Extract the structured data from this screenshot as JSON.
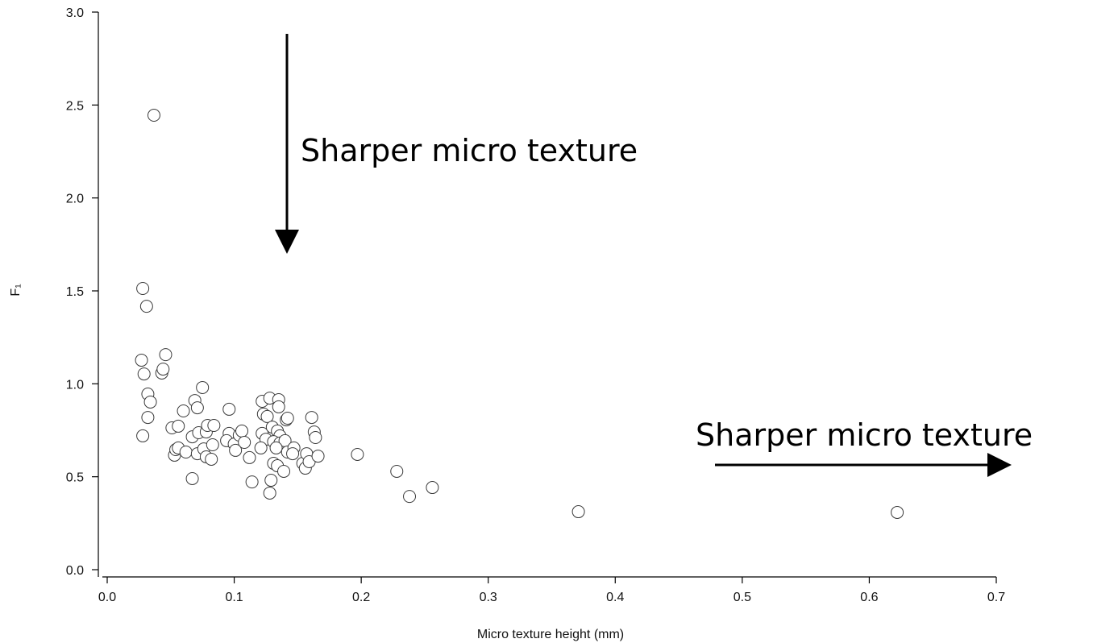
{
  "chart_data": {
    "type": "scatter",
    "xlabel": "Micro texture height (mm)",
    "ylabel": "F₁",
    "annotations": [
      "Sharper micro texture",
      "Sharper micro texture"
    ],
    "xlim": [
      0,
      0.7
    ],
    "ylim": [
      0,
      3
    ],
    "xticks": [
      {
        "value": 0,
        "label": "0.0"
      },
      0.1,
      0.2,
      0.3,
      0.4,
      0.5,
      0.6,
      0.7
    ],
    "yticks": [
      {
        "value": 0,
        "label": "0.0"
      },
      0.5,
      {
        "value": 1,
        "label": "1.0"
      },
      1.5,
      {
        "value": 2,
        "label": "2.0"
      },
      2.5,
      {
        "value": 3,
        "label": "3.0"
      }
    ],
    "color": "#ffffff",
    "edgecolor": "#3a3a3a",
    "x": [
      0.0368,
      0.028,
      0.031,
      0.027,
      0.029,
      0.046,
      0.043,
      0.044,
      0.032,
      0.034,
      0.032,
      0.028,
      0.075,
      0.069,
      0.071,
      0.06,
      0.051,
      0.056,
      0.053,
      0.054,
      0.056,
      0.062,
      0.067,
      0.072,
      0.078,
      0.079,
      0.084,
      0.071,
      0.076,
      0.078,
      0.082,
      0.083,
      0.067,
      0.096,
      0.096,
      0.094,
      0.1,
      0.104,
      0.106,
      0.108,
      0.101,
      0.112,
      0.114,
      0.122,
      0.128,
      0.135,
      0.135,
      0.123,
      0.126,
      0.141,
      0.142,
      0.122,
      0.13,
      0.134,
      0.136,
      0.125,
      0.121,
      0.131,
      0.136,
      0.14,
      0.133,
      0.142,
      0.147,
      0.146,
      0.131,
      0.134,
      0.129,
      0.139,
      0.128,
      0.154,
      0.156,
      0.157,
      0.159,
      0.161,
      0.163,
      0.164,
      0.166,
      0.197,
      0.228,
      0.238,
      0.256,
      0.371,
      0.622
    ],
    "y": [
      2.445,
      1.513,
      1.417,
      1.127,
      1.053,
      1.157,
      1.058,
      1.079,
      0.945,
      0.902,
      0.819,
      0.72,
      0.98,
      0.91,
      0.871,
      0.854,
      0.763,
      0.772,
      0.616,
      0.646,
      0.655,
      0.633,
      0.715,
      0.737,
      0.741,
      0.776,
      0.776,
      0.624,
      0.65,
      0.607,
      0.594,
      0.672,
      0.49,
      0.863,
      0.733,
      0.694,
      0.676,
      0.724,
      0.746,
      0.685,
      0.642,
      0.603,
      0.472,
      0.906,
      0.923,
      0.915,
      0.876,
      0.837,
      0.824,
      0.806,
      0.815,
      0.733,
      0.767,
      0.746,
      0.72,
      0.702,
      0.655,
      0.689,
      0.681,
      0.694,
      0.655,
      0.633,
      0.655,
      0.624,
      0.572,
      0.559,
      0.481,
      0.529,
      0.412,
      0.572,
      0.546,
      0.624,
      0.581,
      0.819,
      0.741,
      0.711,
      0.611,
      0.62,
      0.529,
      0.394,
      0.442,
      0.312,
      0.308
    ]
  }
}
